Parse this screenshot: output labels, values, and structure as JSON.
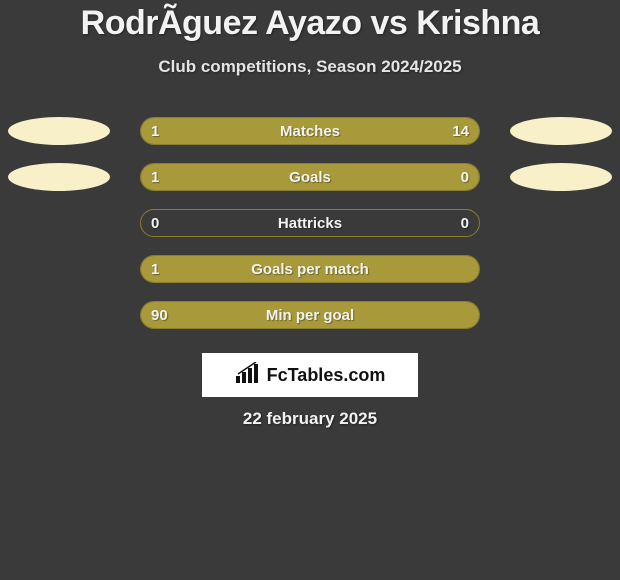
{
  "colors": {
    "page_bg": "#3a3a3a",
    "text": "#f2f2f2",
    "accent": "#a89a3b",
    "subtitle": "#e4e4e4",
    "bar_border": "#8a7d2e",
    "ellipse": "#f8f0c8"
  },
  "title": "RodrÃ­guez Ayazo vs Krishna",
  "subtitle": "Club competitions, Season 2024/2025",
  "brand": "FcTables.com",
  "date": "22 february 2025",
  "rows": [
    {
      "label": "Matches",
      "left_value": "1",
      "right_value": "14",
      "left_pct": 18,
      "right_pct": 82,
      "show_ellipses": true
    },
    {
      "label": "Goals",
      "left_value": "1",
      "right_value": "0",
      "left_pct": 80,
      "right_pct": 20,
      "show_ellipses": true
    },
    {
      "label": "Hattricks",
      "left_value": "0",
      "right_value": "0",
      "left_pct": 0,
      "right_pct": 0,
      "show_ellipses": false
    },
    {
      "label": "Goals per match",
      "left_value": "1",
      "right_value": "",
      "left_pct": 100,
      "right_pct": 0,
      "show_ellipses": false
    },
    {
      "label": "Min per goal",
      "left_value": "90",
      "right_value": "",
      "left_pct": 100,
      "right_pct": 0,
      "show_ellipses": false
    }
  ]
}
